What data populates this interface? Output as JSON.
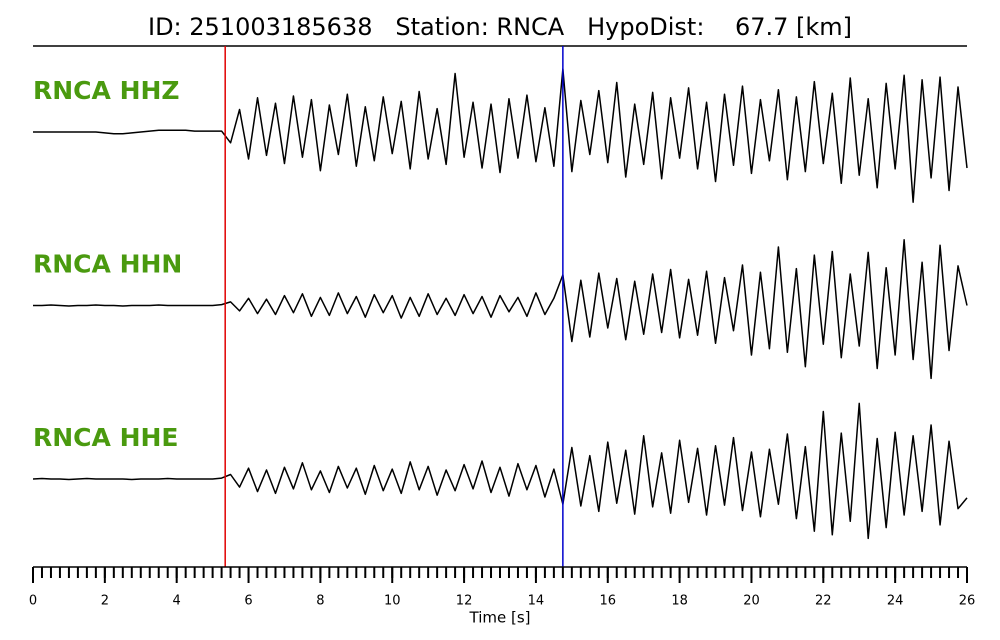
{
  "chart_data": {
    "type": "seismogram",
    "title": "ID: 251003185638   Station: RNCA   HypoDist:    67.7 [km]",
    "xlabel": "Time [s]",
    "xlim": [
      0,
      26
    ],
    "xticks": [
      0,
      2,
      4,
      6,
      8,
      10,
      12,
      14,
      16,
      18,
      20,
      22,
      24,
      26
    ],
    "ylim": [
      -9,
      9
    ],
    "label_color": "#4a9a0f",
    "picks": [
      {
        "x": 5.35,
        "color": "#e00000"
      },
      {
        "x": 14.75,
        "color": "#0000cc"
      }
    ],
    "x": [
      0,
      0.25,
      0.5,
      0.75,
      1,
      1.25,
      1.5,
      1.75,
      2,
      2.25,
      2.5,
      2.75,
      3,
      3.25,
      3.5,
      3.75,
      4,
      4.25,
      4.5,
      4.75,
      5,
      5.25,
      5.5,
      5.75,
      6,
      6.25,
      6.5,
      6.75,
      7,
      7.25,
      7.5,
      7.75,
      8,
      8.25,
      8.5,
      8.75,
      9,
      9.25,
      9.5,
      9.75,
      10,
      10.25,
      10.5,
      10.75,
      11,
      11.25,
      11.5,
      11.75,
      12,
      12.25,
      12.5,
      12.75,
      13,
      13.25,
      13.5,
      13.75,
      14,
      14.25,
      14.5,
      14.75,
      15,
      15.25,
      15.5,
      15.75,
      16,
      16.25,
      16.5,
      16.75,
      17,
      17.25,
      17.5,
      17.75,
      18,
      18.25,
      18.5,
      18.75,
      19,
      19.25,
      19.5,
      19.75,
      20,
      20.25,
      20.5,
      20.75,
      21,
      21.25,
      21.5,
      21.75,
      22,
      22.25,
      22.5,
      22.75,
      23,
      23.25,
      23.5,
      23.75,
      24,
      24.25,
      24.5,
      24.75,
      25,
      25.25,
      25.5,
      25.75,
      26
    ],
    "series": [
      {
        "name": "RNCA HHZ",
        "color": "#000000",
        "values": [
          0,
          0,
          0,
          0,
          0,
          0,
          0,
          0,
          -0.1,
          -0.2,
          -0.2,
          -0.1,
          0,
          0.1,
          0.2,
          0.2,
          0.2,
          0.2,
          0.1,
          0.1,
          0.1,
          0.1,
          -1.2,
          2.5,
          -3,
          3.8,
          -2.6,
          3.2,
          -3.5,
          4,
          -2.8,
          3.6,
          -4.3,
          3,
          -2.5,
          4.2,
          -3.8,
          2.8,
          -3.2,
          3.9,
          -2.4,
          3.4,
          -4.1,
          4.5,
          -3,
          2.6,
          -3.6,
          6.5,
          -2.8,
          3.3,
          -4,
          3.1,
          -4.5,
          3.7,
          -2.9,
          4.1,
          -3.3,
          2.7,
          -3.8,
          7,
          -4.4,
          3.5,
          -2.5,
          4.6,
          -3.4,
          5.5,
          -5,
          3.1,
          -3.6,
          4.4,
          -5.2,
          3.8,
          -2.9,
          4.9,
          -4.1,
          3.3,
          -5.5,
          4.2,
          -3.7,
          5.1,
          -4.6,
          3.6,
          -3.2,
          4.7,
          -5.3,
          3.9,
          -4.4,
          5.6,
          -3.5,
          4.3,
          -5.7,
          6,
          -4.8,
          3.7,
          -6.2,
          5.4,
          -4.1,
          6.3,
          -7.8,
          5.8,
          -5.1,
          6.1,
          -6.5,
          5,
          -4
        ]
      },
      {
        "name": "RNCA HHN",
        "color": "#000000",
        "values": [
          0,
          0,
          0.05,
          0,
          -0.05,
          0,
          0,
          0.05,
          0,
          0,
          -0.05,
          0,
          0,
          0,
          0.05,
          0,
          0,
          0,
          0,
          0,
          0,
          0.1,
          0.4,
          -0.6,
          0.8,
          -0.9,
          0.7,
          -1,
          1.1,
          -0.8,
          1.3,
          -1.2,
          0.9,
          -1.1,
          1.4,
          -0.9,
          1,
          -1.3,
          1.2,
          -0.8,
          1.1,
          -1.4,
          0.9,
          -1.2,
          1.3,
          -1,
          0.8,
          -1.1,
          1.2,
          -0.9,
          1,
          -1.3,
          1.1,
          -0.7,
          0.9,
          -1.2,
          1.4,
          -1,
          0.8,
          3.4,
          -4,
          2.8,
          -3.5,
          3.6,
          -2.5,
          3,
          -3.8,
          2.7,
          -3.2,
          3.5,
          -3,
          4,
          -3.6,
          2.9,
          -3.3,
          3.8,
          -4.2,
          3.1,
          -2.8,
          4.5,
          -5.5,
          3.7,
          -4.8,
          6.5,
          -5.2,
          4.1,
          -6.8,
          5.6,
          -4.3,
          6,
          -5.8,
          3.5,
          -4.5,
          5.9,
          -7,
          4.2,
          -5.5,
          7.3,
          -6,
          4.8,
          -8.1,
          6.7,
          -5,
          4.4,
          0
        ]
      },
      {
        "name": "RNCA HHE",
        "color": "#000000",
        "values": [
          0,
          0.05,
          0,
          0,
          -0.05,
          0,
          0.05,
          0,
          0,
          0,
          0,
          -0.05,
          0,
          0,
          0,
          0.05,
          0,
          0,
          0,
          0,
          0,
          0.1,
          0.5,
          -0.9,
          1.2,
          -1.4,
          1,
          -1.6,
          1.3,
          -1.1,
          1.8,
          -1.2,
          0.9,
          -1.5,
          1.4,
          -1,
          1.2,
          -1.7,
          1.5,
          -1.3,
          1.1,
          -1.6,
          1.9,
          -1.2,
          1.4,
          -1.8,
          1,
          -1.3,
          1.6,
          -1.1,
          2,
          -1.5,
          1.3,
          -1.9,
          1.7,
          -1.2,
          1.5,
          -2,
          1.1,
          -2.8,
          3.5,
          -3,
          2.6,
          -3.6,
          4.1,
          -2.7,
          3.2,
          -3.9,
          4.8,
          -3.1,
          2.9,
          -3.8,
          4.3,
          -2.6,
          3.4,
          -4,
          3.7,
          -2.9,
          4.6,
          -3.5,
          3,
          -4.2,
          3.3,
          -2.8,
          5,
          -4.4,
          3.6,
          -5.8,
          7.5,
          -6.2,
          5.1,
          -4.7,
          8.4,
          -6.6,
          4.5,
          -5.4,
          5.2,
          -4,
          4.8,
          -3.6,
          6,
          -5.1,
          4.2,
          -3.3,
          -2.1
        ]
      }
    ]
  }
}
